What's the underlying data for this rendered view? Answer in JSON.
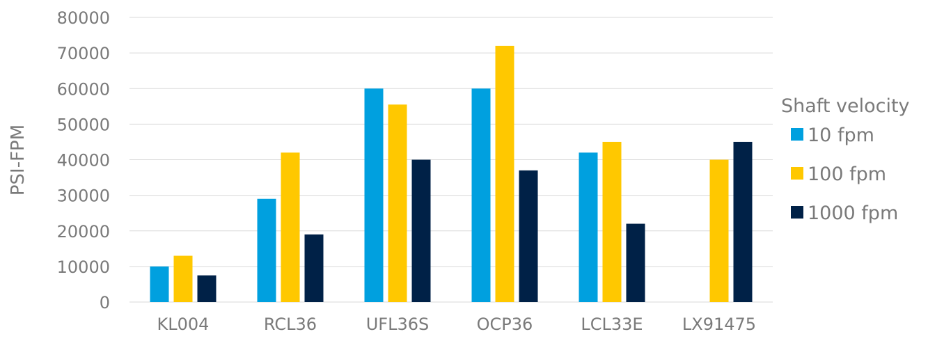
{
  "chart_data": {
    "type": "bar",
    "ylabel": "PSI-FPM",
    "ylim": [
      0,
      80000
    ],
    "yticks": [
      0,
      10000,
      20000,
      30000,
      40000,
      50000,
      60000,
      70000,
      80000
    ],
    "grid": true,
    "legend_placement": "right",
    "legend_title": "Shaft velocity",
    "categories": [
      "KL004",
      "RCL36",
      "UFL36S",
      "OCP36",
      "LCL33E",
      "LX91475"
    ],
    "series": [
      {
        "name": "10 fpm",
        "color": "#00a0df",
        "values": [
          10000,
          29000,
          60000,
          60000,
          42000,
          0
        ]
      },
      {
        "name": "100 fpm",
        "color": "#ffc800",
        "values": [
          13000,
          42000,
          55500,
          72000,
          45000,
          40000
        ]
      },
      {
        "name": "1000 fpm",
        "color": "#002147",
        "values": [
          7500,
          19000,
          40000,
          37000,
          22000,
          45000
        ]
      }
    ]
  }
}
